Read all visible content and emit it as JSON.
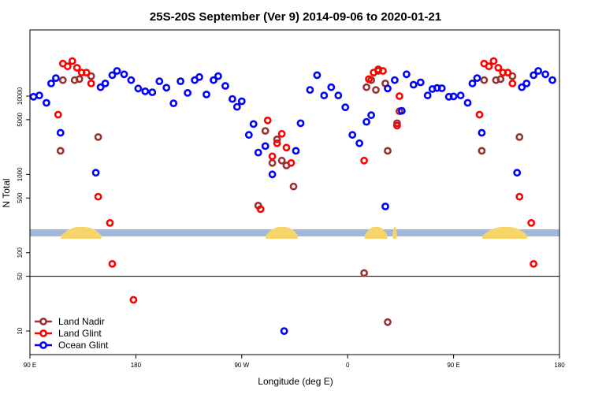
{
  "chart_data": {
    "type": "scatter",
    "title": "25S-20S September (Ver 9)   2014-09-06 to 2020-01-21",
    "xlabel": "Longitude (deg E)",
    "ylabel": "N Total",
    "y_scale": "log",
    "xlim": [
      90,
      540
    ],
    "ylim": [
      5,
      70000
    ],
    "x_ticks": [
      {
        "value": 90,
        "label": "90 E"
      },
      {
        "value": 180,
        "label": "180"
      },
      {
        "value": 270,
        "label": "90 W"
      },
      {
        "value": 360,
        "label": "0"
      },
      {
        "value": 450,
        "label": "90 E"
      },
      {
        "value": 540,
        "label": "180"
      }
    ],
    "y_ticks": [
      {
        "value": 10,
        "label": "10"
      },
      {
        "value": 50,
        "label": "50"
      },
      {
        "value": 100,
        "label": "100"
      },
      {
        "value": 500,
        "label": "500"
      },
      {
        "value": 1000,
        "label": "1000"
      },
      {
        "value": 5000,
        "label": "5000"
      },
      {
        "value": 10000,
        "label": "10000"
      }
    ],
    "reference_line_y": 50,
    "land_band": {
      "ocean_color": "#9fb8db",
      "land_color": "#f7d56a",
      "land_segments": [
        [
          116,
          151
        ],
        [
          290,
          318
        ],
        [
          374,
          394
        ],
        [
          398,
          402
        ],
        [
          474,
          513
        ]
      ]
    },
    "legend_position": "bottom-left",
    "series": [
      {
        "name": "Land Nadir",
        "color": "#993333",
        "points": [
          [
            116,
            2000
          ],
          [
            118,
            16000
          ],
          [
            128,
            16000
          ],
          [
            132,
            16500
          ],
          [
            142,
            18000
          ],
          [
            148,
            3000
          ],
          [
            290,
            3600
          ],
          [
            284,
            400
          ],
          [
            296,
            1400
          ],
          [
            300,
            2800
          ],
          [
            304,
            1500
          ],
          [
            308,
            1300
          ],
          [
            314,
            700
          ],
          [
            374,
            55
          ],
          [
            376,
            13000
          ],
          [
            380,
            16000
          ],
          [
            384,
            12000
          ],
          [
            386,
            21000
          ],
          [
            392,
            14500
          ],
          [
            394,
            2000
          ],
          [
            394,
            13
          ],
          [
            402,
            4500
          ],
          [
            404,
            6400
          ],
          [
            474,
            2000
          ],
          [
            476,
            16000
          ],
          [
            486,
            16000
          ],
          [
            490,
            16500
          ],
          [
            500,
            18000
          ],
          [
            506,
            3000
          ]
        ]
      },
      {
        "name": "Land Glint",
        "color": "#ff0000",
        "points": [
          [
            114,
            5800
          ],
          [
            118,
            26000
          ],
          [
            122,
            24000
          ],
          [
            126,
            28000
          ],
          [
            130,
            23000
          ],
          [
            134,
            20000
          ],
          [
            138,
            20000
          ],
          [
            142,
            14500
          ],
          [
            148,
            520
          ],
          [
            158,
            240
          ],
          [
            160,
            72
          ],
          [
            178,
            25
          ],
          [
            292,
            4900
          ],
          [
            286,
            360
          ],
          [
            296,
            1700
          ],
          [
            300,
            2500
          ],
          [
            304,
            3300
          ],
          [
            308,
            2200
          ],
          [
            312,
            1400
          ],
          [
            374,
            1500
          ],
          [
            378,
            16500
          ],
          [
            382,
            20000
          ],
          [
            386,
            22000
          ],
          [
            390,
            21000
          ],
          [
            402,
            4200
          ],
          [
            404,
            10000
          ],
          [
            472,
            5800
          ],
          [
            476,
            26000
          ],
          [
            480,
            24000
          ],
          [
            484,
            28000
          ],
          [
            488,
            23000
          ],
          [
            492,
            20000
          ],
          [
            496,
            20000
          ],
          [
            500,
            14500
          ],
          [
            506,
            520
          ],
          [
            516,
            240
          ],
          [
            518,
            72
          ]
        ]
      },
      {
        "name": "Ocean Glint",
        "color": "#0000ff",
        "points": [
          [
            93,
            9800
          ],
          [
            98,
            10200
          ],
          [
            104,
            8200
          ],
          [
            108,
            14500
          ],
          [
            112,
            17000
          ],
          [
            116,
            3400
          ],
          [
            146,
            1050
          ],
          [
            150,
            13000
          ],
          [
            154,
            14500
          ],
          [
            160,
            18500
          ],
          [
            164,
            21000
          ],
          [
            170,
            19000
          ],
          [
            176,
            16000
          ],
          [
            182,
            12500
          ],
          [
            188,
            11500
          ],
          [
            194,
            11200
          ],
          [
            200,
            15500
          ],
          [
            206,
            12800
          ],
          [
            212,
            8100
          ],
          [
            218,
            15500
          ],
          [
            224,
            11000
          ],
          [
            230,
            16000
          ],
          [
            234,
            17500
          ],
          [
            240,
            10500
          ],
          [
            246,
            16000
          ],
          [
            250,
            18000
          ],
          [
            256,
            13500
          ],
          [
            262,
            9200
          ],
          [
            266,
            7300
          ],
          [
            270,
            8600
          ],
          [
            276,
            3200
          ],
          [
            280,
            4400
          ],
          [
            284,
            1900
          ],
          [
            290,
            2300
          ],
          [
            296,
            1000
          ],
          [
            316,
            2000
          ],
          [
            320,
            4500
          ],
          [
            306,
            10
          ],
          [
            328,
            12000
          ],
          [
            334,
            18500
          ],
          [
            340,
            10200
          ],
          [
            346,
            13000
          ],
          [
            352,
            10200
          ],
          [
            358,
            7200
          ],
          [
            364,
            3200
          ],
          [
            370,
            2500
          ],
          [
            376,
            4700
          ],
          [
            380,
            5700
          ],
          [
            392,
            390
          ],
          [
            394,
            12500
          ],
          [
            400,
            16000
          ],
          [
            406,
            6500
          ],
          [
            410,
            19000
          ],
          [
            416,
            14000
          ],
          [
            422,
            15000
          ],
          [
            428,
            10200
          ],
          [
            432,
            12300
          ],
          [
            436,
            12700
          ],
          [
            440,
            12600
          ],
          [
            446,
            9800
          ],
          [
            450,
            9900
          ],
          [
            456,
            10200
          ],
          [
            462,
            8200
          ],
          [
            466,
            14500
          ],
          [
            470,
            17000
          ],
          [
            474,
            3400
          ],
          [
            504,
            1050
          ],
          [
            508,
            13000
          ],
          [
            512,
            14500
          ],
          [
            518,
            18500
          ],
          [
            522,
            21000
          ],
          [
            528,
            19000
          ],
          [
            534,
            16000
          ]
        ]
      }
    ]
  }
}
